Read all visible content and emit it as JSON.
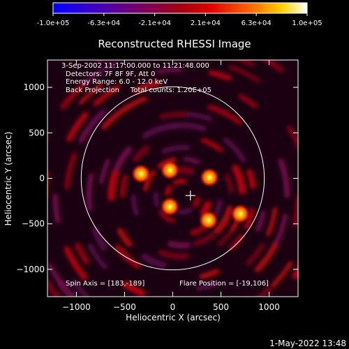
{
  "colorbar": {
    "tick_labels": [
      "-1.0e+05",
      "-6.3e+04",
      "-2.1e+04",
      "2.1e+04",
      "6.3e+04",
      "1.0e+05"
    ],
    "range": [
      -100000,
      100000
    ]
  },
  "annotations": {
    "time_range": "3-Sep-2002 11:17:00.000 to 11:21:48.000",
    "detectors": "Detectors: 7F 8F 9F, Att 0",
    "energy_range": "Energy Range: 6.0 - 12.0 keV",
    "method_counts": "Back Projection     Total counts: 1.20E+05",
    "spin_axis": "Spin Axis = [183,-189]",
    "flare_position": "Flare Position = [-19,106]"
  },
  "footer_timestamp": "1-May-2022 13:48",
  "chart_data": {
    "type": "heatmap",
    "title": "Reconstructed RHESSI Image",
    "xlabel": "Heliocentric X (arcsec)",
    "ylabel": "Heliocentric Y (arcsec)",
    "xlim": [
      -1300,
      1300
    ],
    "ylim": [
      -1300,
      1300
    ],
    "x_ticks": [
      -1000,
      -500,
      0,
      500,
      1000
    ],
    "y_ticks": [
      -1000,
      -500,
      0,
      500,
      1000
    ],
    "x_tick_labels": [
      "−1000",
      "−500",
      "0",
      "500",
      "1000"
    ],
    "y_tick_labels": [
      "−1000",
      "−500",
      "0",
      "500",
      "1000"
    ],
    "colormap": "rainbow-like (blue-purple-red-yellow-white)",
    "limb_circle": {
      "center": [
        0,
        0
      ],
      "radius_arcsec": 950
    },
    "spin_axis_marker": [
      183,
      -189
    ],
    "bright_sources": [
      {
        "x": -330,
        "y": 50
      },
      {
        "x": -30,
        "y": 90
      },
      {
        "x": 380,
        "y": 10
      },
      {
        "x": -30,
        "y": -310
      },
      {
        "x": 370,
        "y": -460
      },
      {
        "x": 700,
        "y": -390
      }
    ],
    "grid": false
  }
}
